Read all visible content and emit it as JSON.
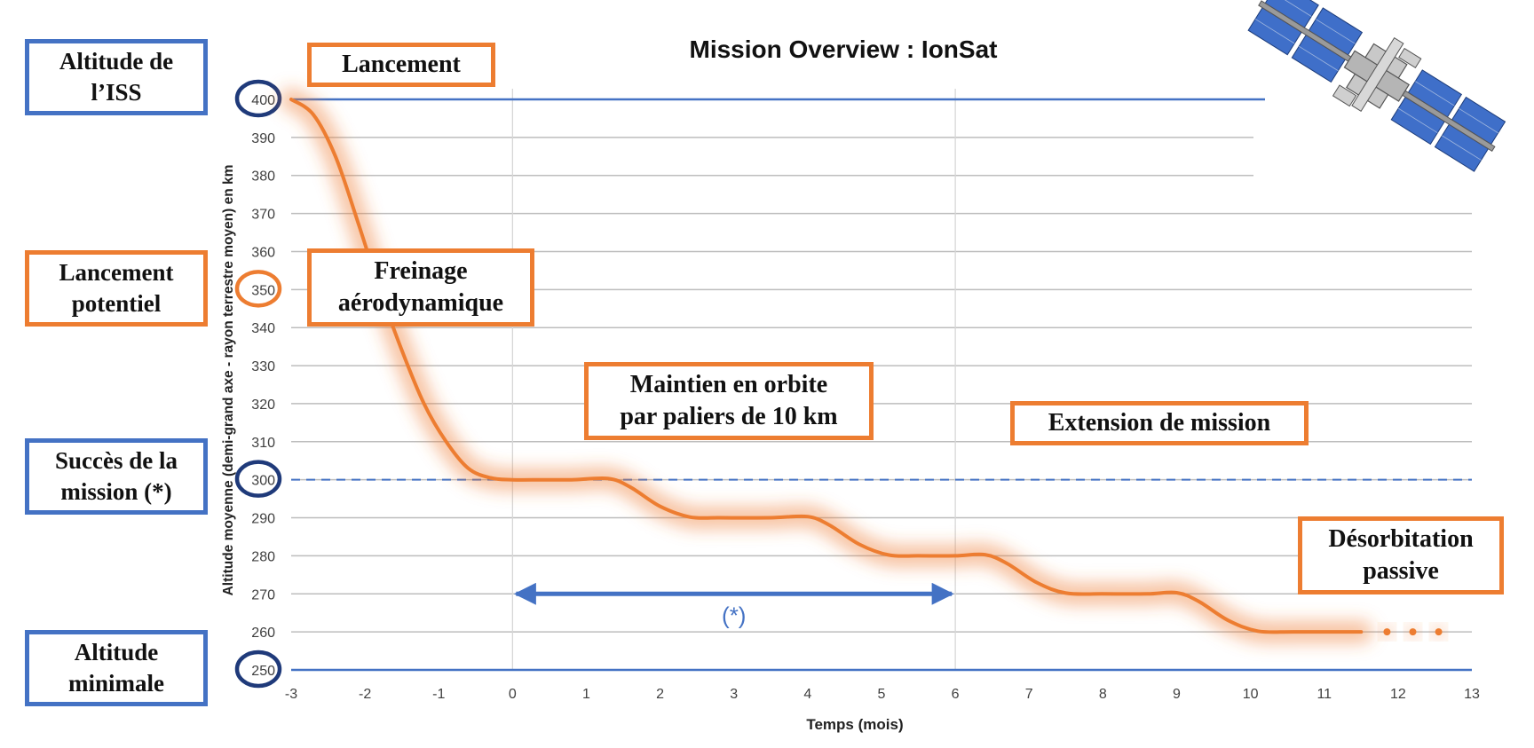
{
  "chart_data": {
    "type": "line",
    "title": "Mission Overview : IonSat",
    "xlabel": "Temps (mois)",
    "ylabel": "Altitude moyenne (demi-grand axe - rayon terrestre moyen) en km",
    "xlim": [
      -3,
      13
    ],
    "ylim": [
      250,
      400
    ],
    "x_ticks": [
      "-3",
      "-2",
      "-1",
      "0",
      "1",
      "2",
      "3",
      "4",
      "5",
      "6",
      "7",
      "8",
      "9",
      "10",
      "11",
      "12",
      "13"
    ],
    "y_ticks": [
      "400",
      "390",
      "380",
      "370",
      "360",
      "350",
      "340",
      "330",
      "320",
      "310",
      "300",
      "290",
      "280",
      "270",
      "260",
      "250"
    ],
    "grid": true,
    "series": [
      {
        "color": "#ed7d31",
        "points": [
          [
            -3.0,
            400
          ],
          [
            -2.7,
            396
          ],
          [
            -2.4,
            385
          ],
          [
            -2.1,
            368
          ],
          [
            -1.8,
            350
          ],
          [
            -1.5,
            334
          ],
          [
            -1.2,
            320
          ],
          [
            -0.9,
            310
          ],
          [
            -0.6,
            303
          ],
          [
            -0.3,
            300.5
          ],
          [
            0.0,
            300
          ],
          [
            0.4,
            300
          ],
          [
            0.8,
            300
          ],
          [
            1.3,
            300.3
          ],
          [
            1.6,
            298
          ],
          [
            2.0,
            293
          ],
          [
            2.4,
            290.2
          ],
          [
            2.8,
            290
          ],
          [
            3.5,
            290
          ],
          [
            4.0,
            290.3
          ],
          [
            4.3,
            288
          ],
          [
            4.7,
            283
          ],
          [
            5.1,
            280.2
          ],
          [
            5.5,
            280
          ],
          [
            6.0,
            280
          ],
          [
            6.4,
            280.3
          ],
          [
            6.7,
            278
          ],
          [
            7.1,
            273
          ],
          [
            7.5,
            270.2
          ],
          [
            8.0,
            270
          ],
          [
            8.6,
            270
          ],
          [
            9.0,
            270.3
          ],
          [
            9.3,
            268
          ],
          [
            9.7,
            263
          ],
          [
            10.1,
            260.2
          ],
          [
            10.6,
            260
          ],
          [
            11.5,
            260
          ]
        ],
        "trailing_dots": [
          [
            11.85,
            260
          ],
          [
            12.2,
            260
          ],
          [
            12.55,
            260
          ]
        ]
      }
    ],
    "reference_lines": [
      {
        "y": 400,
        "style": "solid",
        "color": "#4472c4"
      },
      {
        "y": 300,
        "style": "dashed",
        "color": "#4472c4"
      },
      {
        "y": 250,
        "style": "solid",
        "color": "#4472c4"
      }
    ],
    "phase_dividers_x": [
      0,
      6
    ],
    "mission_arrow": {
      "x_start": 0,
      "x_end": 6,
      "y": 270,
      "label": "(*)",
      "color": "#4472c4"
    },
    "highlighted_ticks": [
      {
        "value": "400",
        "color": "#1f3a7a"
      },
      {
        "value": "350",
        "color": "#ed7d31"
      },
      {
        "value": "300",
        "color": "#1f3a7a"
      },
      {
        "value": "250",
        "color": "#1f3a7a"
      }
    ]
  },
  "side_labels": {
    "iss_altitude": [
      "Altitude de",
      "l’ISS"
    ],
    "potential_launch": [
      "Lancement",
      "potentiel"
    ],
    "mission_success": [
      "Succès de la",
      "mission (*)"
    ],
    "minimum_altitude": [
      "Altitude",
      "minimale"
    ]
  },
  "phase_labels": {
    "launch": "Lancement",
    "braking": [
      "Freinage",
      "aérodynamique"
    ],
    "station_keeping": [
      "Maintien en orbite",
      "par paliers de 10 km"
    ],
    "extension": "Extension de mission",
    "deorbit": [
      "Désorbitation",
      "passive"
    ]
  },
  "icons": {
    "station": "space-station-icon"
  }
}
